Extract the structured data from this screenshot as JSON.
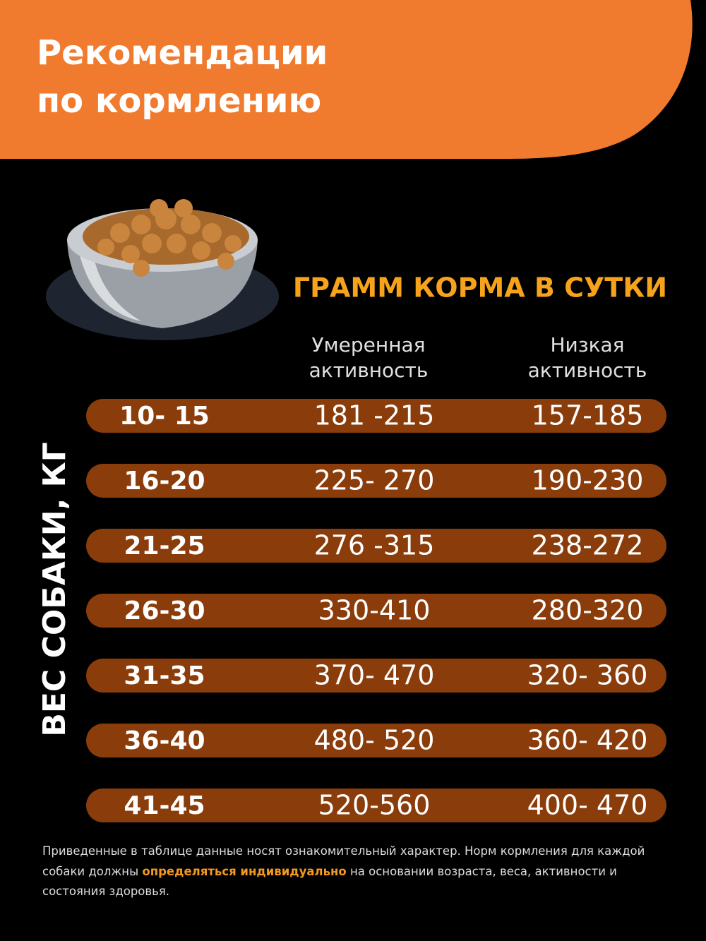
{
  "header": {
    "title": [
      "Рекомендации",
      "по кормлению"
    ]
  },
  "table": {
    "heading": "ГРАММ КОРМА В СУТКИ",
    "columns": [
      [
        "Умеренная",
        "активность"
      ],
      [
        "Низкая",
        "активность"
      ]
    ],
    "row_axis_label": "ВЕС СОБАКИ, КГ",
    "rows": [
      [
        "10- 15",
        "181 -215",
        "157-185"
      ],
      [
        "16-20",
        "225- 270",
        "190-230"
      ],
      [
        "21-25",
        "276 -315",
        "238-272"
      ],
      [
        "26-30",
        "330-410",
        "280-320"
      ],
      [
        "31-35",
        "370- 470",
        "320- 360"
      ],
      [
        "36-40",
        "480- 520",
        "360- 420"
      ],
      [
        "41-45",
        "520-560",
        "400- 470"
      ]
    ]
  },
  "footnote": [
    "Приведенные в таблице данные носят ознакомительный характер. Норм кормления для каждой собаки должны ",
    "определяться индивидуально",
    " на основании возраста, веса, активности и состояния здоровья."
  ]
}
